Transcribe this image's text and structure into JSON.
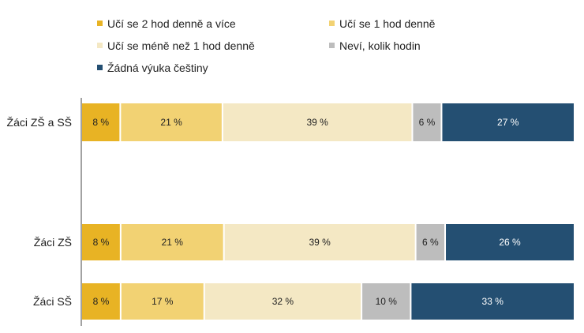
{
  "chart_data": {
    "type": "bar",
    "orientation": "horizontal",
    "stacked": true,
    "normalized": true,
    "grid": false,
    "legend_position": "top",
    "categories": [
      "Žáci ZŠ a SŠ",
      "Žáci ZŠ",
      "Žáci SŠ"
    ],
    "series": [
      {
        "name": "Učí se 2 hod denně a více",
        "color": "#e8b324",
        "label_color": "#222222",
        "values": [
          8,
          8,
          8
        ],
        "labels": [
          "8 %",
          "8 %",
          "8 %"
        ]
      },
      {
        "name": "Učí se 1 hod denně",
        "color": "#f2d273",
        "label_color": "#222222",
        "values": [
          21,
          21,
          17
        ],
        "labels": [
          "21 %",
          "21 %",
          "17 %"
        ]
      },
      {
        "name": "Učí se méně než 1 hod denně",
        "color": "#f4e8c4",
        "label_color": "#222222",
        "values": [
          39,
          39,
          32
        ],
        "labels": [
          "39 %",
          "39 %",
          "32 %"
        ]
      },
      {
        "name": "Neví, kolik hodin",
        "color": "#bdbdbd",
        "label_color": "#222222",
        "values": [
          6,
          6,
          10
        ],
        "labels": [
          "6 %",
          "6 %",
          "10 %"
        ]
      },
      {
        "name": "Žádná výuka češtiny",
        "color": "#244f72",
        "label_color": "#ffffff",
        "values": [
          27,
          26,
          33
        ],
        "labels": [
          "27 %",
          "26 %",
          "33 %"
        ]
      }
    ]
  }
}
